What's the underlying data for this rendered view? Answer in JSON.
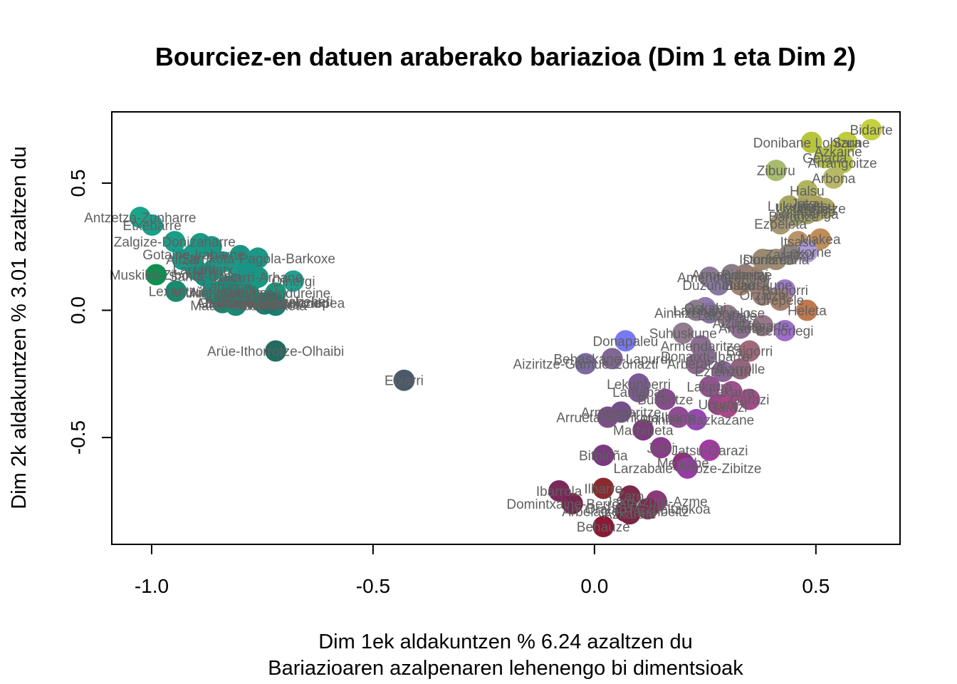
{
  "chart_data": {
    "type": "scatter",
    "title": "Bourciez-en datuen araberako bariazioa (Dim 1 eta Dim 2)",
    "xlabel": "Dim 1ek aldakuntzen % 6.24 azaltzen du",
    "xlabel2": "Bariazioaren azalpenaren lehenengo bi dimentsioak",
    "ylabel": "Dim 2k aldakuntzen % 3.01 azaltzen du",
    "xlim": [
      -1.09,
      0.69
    ],
    "ylim": [
      -0.92,
      0.78
    ],
    "xticks": [
      -1.0,
      -0.5,
      0.0,
      0.5
    ],
    "xtick_labels": [
      "-1.0",
      "-0.5",
      "0.0",
      "0.5"
    ],
    "yticks": [
      -0.5,
      0.0,
      0.5
    ],
    "ytick_labels": [
      "-0.5",
      "0.0",
      "0.5"
    ],
    "grid": false,
    "points": [
      {
        "x": -1.026,
        "y": 0.365,
        "label": "Antzetza-Zunharre",
        "color": "#1aa58a"
      },
      {
        "x": -0.999,
        "y": 0.335,
        "label": "Etxebarre",
        "color": "#18a08a"
      },
      {
        "x": -0.948,
        "y": 0.27,
        "label": "Zalgize-Donizaharre",
        "color": "#1a9e8a"
      },
      {
        "x": -0.89,
        "y": 0.262,
        "label": "",
        "color": "#1a9a88"
      },
      {
        "x": -0.865,
        "y": 0.25,
        "label": "",
        "color": "#1c9686"
      },
      {
        "x": -0.905,
        "y": 0.22,
        "label": "Gotaine-Irabarne",
        "color": "#1a9a88"
      },
      {
        "x": -0.93,
        "y": 0.2,
        "label": "Altzai",
        "color": "#1c9a88"
      },
      {
        "x": -0.8,
        "y": 0.215,
        "label": "",
        "color": "#1c9484"
      },
      {
        "x": -0.76,
        "y": 0.205,
        "label": "Sarrikota-Pagola-Barkoxe",
        "color": "#1c9686"
      },
      {
        "x": -0.86,
        "y": 0.16,
        "label": "Urdatx",
        "color": "#1a9280"
      },
      {
        "x": -0.9,
        "y": 0.16,
        "label": "Larrañe",
        "color": "#1a9482"
      },
      {
        "x": -0.76,
        "y": 0.13,
        "label": "Lakarri-Arhane",
        "color": "#1a9884"
      },
      {
        "x": -0.99,
        "y": 0.14,
        "label": "Muskildi-Ziboitz",
        "color": "#109050"
      },
      {
        "x": -0.88,
        "y": 0.135,
        "label": "Santa-Grazi",
        "color": "#1a8e80"
      },
      {
        "x": -0.8,
        "y": 0.12,
        "label": "",
        "color": "#1c9082"
      },
      {
        "x": -0.68,
        "y": 0.115,
        "label": "Oihergi",
        "color": "#20a090"
      },
      {
        "x": -0.83,
        "y": 0.095,
        "label": "Larraine",
        "color": "#1a8c7c"
      },
      {
        "x": -0.72,
        "y": 0.068,
        "label": "Sohüta-Ündüreine",
        "color": "#1b967c"
      },
      {
        "x": -0.945,
        "y": 0.075,
        "label": "Lexantzü",
        "color": "#198a70"
      },
      {
        "x": -0.86,
        "y": 0.07,
        "label": "Mitikile-Larrori",
        "color": "#1a8e7c"
      },
      {
        "x": -0.82,
        "y": 0.07,
        "label": "Ainharbe-Alos",
        "color": "#1a8a78"
      },
      {
        "x": -0.78,
        "y": 0.06,
        "label": "Garindaine",
        "color": "#1b887a"
      },
      {
        "x": -0.74,
        "y": 0.03,
        "label": "Barkoxe-Gastelondo",
        "color": "#1c8c7c"
      },
      {
        "x": -0.84,
        "y": 0.03,
        "label": "Garruze",
        "color": "#1a8670"
      },
      {
        "x": -0.81,
        "y": 0.02,
        "label": "Maule-Lextarre",
        "color": "#1a8a76"
      },
      {
        "x": -0.745,
        "y": 0.025,
        "label": "Iruri-Bizkaia",
        "color": "#1a8074"
      },
      {
        "x": -0.735,
        "y": 0.035,
        "label": "Altzürükü-Altzabeheti",
        "color": "#1b8678"
      },
      {
        "x": -0.72,
        "y": 0.02,
        "label": "Mendikota",
        "color": "#1a8074"
      },
      {
        "x": -0.81,
        "y": 0.18,
        "label": "",
        "color": "#1c9888"
      },
      {
        "x": -0.78,
        "y": 0.17,
        "label": "",
        "color": "#1a9484"
      },
      {
        "x": -0.84,
        "y": 0.19,
        "label": "",
        "color": "#1c9686"
      },
      {
        "x": -0.732,
        "y": 0.03,
        "label": "Arrokiaga-Hozkortziepea",
        "color": "#19786c"
      },
      {
        "x": -0.72,
        "y": -0.16,
        "label": "Arüe-Ithorrotze-Olhaibi",
        "color": "#226c60"
      },
      {
        "x": -0.43,
        "y": -0.275,
        "label": "Etxarri",
        "color": "#4a5a6a"
      },
      {
        "x": 0.625,
        "y": 0.71,
        "label": "Bidarte",
        "color": "#c4d03c"
      },
      {
        "x": 0.49,
        "y": 0.66,
        "label": "Donibane Lohizune",
        "color": "#b8c43a"
      },
      {
        "x": 0.57,
        "y": 0.66,
        "label": "Sara",
        "color": "#c0cc40"
      },
      {
        "x": 0.55,
        "y": 0.625,
        "label": "Azkaine",
        "color": "#bcc642"
      },
      {
        "x": 0.52,
        "y": 0.6,
        "label": "Getaria",
        "color": "#b4c048"
      },
      {
        "x": 0.56,
        "y": 0.58,
        "label": "Arrangoitze",
        "color": "#b6c24c"
      },
      {
        "x": 0.41,
        "y": 0.55,
        "label": "Ziburu",
        "color": "#a8bc70"
      },
      {
        "x": 0.54,
        "y": 0.52,
        "label": "Arbona",
        "color": "#b8b868"
      },
      {
        "x": 0.48,
        "y": 0.47,
        "label": "Halsu",
        "color": "#b0b460"
      },
      {
        "x": 0.48,
        "y": 0.42,
        "label": "Jatsu",
        "color": "#a8a868"
      },
      {
        "x": 0.47,
        "y": 0.4,
        "label": "Uztaritze",
        "color": "#a4a060"
      },
      {
        "x": 0.52,
        "y": 0.4,
        "label": "Ahetze",
        "color": "#aaa864"
      },
      {
        "x": 0.44,
        "y": 0.41,
        "label": "Lukuze",
        "color": "#a6a660"
      },
      {
        "x": 0.5,
        "y": 0.39,
        "label": "Kanbo",
        "color": "#a8a462"
      },
      {
        "x": 0.45,
        "y": 0.37,
        "label": "Bardoze",
        "color": "#a0a06a"
      },
      {
        "x": 0.48,
        "y": 0.38,
        "label": "Milafranga",
        "color": "#a2a268"
      },
      {
        "x": 0.42,
        "y": 0.34,
        "label": "Ezpeleta",
        "color": "#a69870"
      },
      {
        "x": 0.5,
        "y": 0.41,
        "label": "Haltsu",
        "color": "#aca660"
      },
      {
        "x": 0.46,
        "y": 0.27,
        "label": "Itsasu",
        "color": "#b8946a"
      },
      {
        "x": 0.51,
        "y": 0.28,
        "label": "Makea",
        "color": "#c08c58"
      },
      {
        "x": 0.48,
        "y": 0.23,
        "label": "Lekorne",
        "color": "#ac9ad8"
      },
      {
        "x": 0.41,
        "y": 0.2,
        "label": "Donamaria",
        "color": "#a08c70"
      },
      {
        "x": 0.38,
        "y": 0.2,
        "label": "Isturitze",
        "color": "#9a8a72"
      },
      {
        "x": 0.44,
        "y": 0.22,
        "label": "Zaraitzu",
        "color": "#8e8480"
      },
      {
        "x": 0.26,
        "y": 0.13,
        "label": "Amendoze",
        "color": "#8a7a94"
      },
      {
        "x": 0.31,
        "y": 0.14,
        "label": "Armendaritze",
        "color": "#8c7c86"
      },
      {
        "x": 0.34,
        "y": 0.14,
        "label": "Bidarrai",
        "color": "#947c7a"
      },
      {
        "x": 0.36,
        "y": 0.13,
        "label": "Iholdi",
        "color": "#9a8070"
      },
      {
        "x": 0.28,
        "y": 0.1,
        "label": "Duzunaritze",
        "color": "#8a78a0"
      },
      {
        "x": 0.33,
        "y": 0.1,
        "label": "Irisarri",
        "color": "#a4846e"
      },
      {
        "x": 0.37,
        "y": 0.1,
        "label": "Suhuskune",
        "color": "#96807a"
      },
      {
        "x": 0.43,
        "y": 0.08,
        "label": "Baigorri",
        "color": "#9c7ac6"
      },
      {
        "x": 0.38,
        "y": 0.06,
        "label": "Orzaize",
        "color": "#9a7e76"
      },
      {
        "x": 0.42,
        "y": 0.04,
        "label": "Urepele",
        "color": "#a6806a"
      },
      {
        "x": 0.48,
        "y": 0.0,
        "label": "Heleta",
        "color": "#c07850"
      },
      {
        "x": 0.25,
        "y": 0.01,
        "label": "Oskabi",
        "color": "#8e7ab0"
      },
      {
        "x": 0.23,
        "y": 0.0,
        "label": "Larribar",
        "color": "#8c7e8c"
      },
      {
        "x": 0.26,
        "y": -0.01,
        "label": "Ainhize-Monjolose",
        "color": "#86749a"
      },
      {
        "x": 0.3,
        "y": -0.02,
        "label": "Larzabale",
        "color": "#927a8c"
      },
      {
        "x": 0.32,
        "y": -0.05,
        "label": "Aiziritze",
        "color": "#8a7296"
      },
      {
        "x": 0.38,
        "y": -0.06,
        "label": "Gamarte",
        "color": "#967888"
      },
      {
        "x": 0.43,
        "y": -0.08,
        "label": "Behorlegi",
        "color": "#9c6ec8"
      },
      {
        "x": 0.33,
        "y": -0.07,
        "label": "Arraute",
        "color": "#8a7090"
      },
      {
        "x": 0.2,
        "y": -0.09,
        "label": "Suhuskune",
        "color": "#927c90"
      },
      {
        "x": 0.24,
        "y": -0.14,
        "label": "Armendaritze",
        "color": "#8c6e92"
      },
      {
        "x": 0.07,
        "y": -0.12,
        "label": "Donapaleu",
        "color": "#7878f0"
      },
      {
        "x": 0.04,
        "y": -0.19,
        "label": "Behaskane-Lapurdi",
        "color": "#806892"
      },
      {
        "x": -0.02,
        "y": -0.21,
        "label": "Aiziritze-Gamue-Zohazti",
        "color": "#7c6aa0"
      },
      {
        "x": 0.25,
        "y": -0.18,
        "label": "Donaixti-Ibarre",
        "color": "#886e92"
      },
      {
        "x": 0.35,
        "y": -0.16,
        "label": "Baigorri",
        "color": "#a06878"
      },
      {
        "x": 0.23,
        "y": -0.21,
        "label": "Arberatze",
        "color": "#8c6890"
      },
      {
        "x": 0.33,
        "y": -0.23,
        "label": "Ibarrolle",
        "color": "#94647e"
      },
      {
        "x": 0.29,
        "y": -0.24,
        "label": "Eztenzuri",
        "color": "#8a6696"
      },
      {
        "x": 0.1,
        "y": -0.29,
        "label": "Lekunberri",
        "color": "#7a5a94"
      },
      {
        "x": 0.1,
        "y": -0.32,
        "label": "Lantabat",
        "color": "#7c5a90"
      },
      {
        "x": 0.26,
        "y": -0.3,
        "label": "Lakarra",
        "color": "#90548c"
      },
      {
        "x": 0.31,
        "y": -0.32,
        "label": "Lakarra",
        "color": "#a0508c"
      },
      {
        "x": 0.35,
        "y": -0.35,
        "label": "Garazi",
        "color": "#a04c88"
      },
      {
        "x": 0.16,
        "y": -0.35,
        "label": "Bustintze",
        "color": "#884c8e"
      },
      {
        "x": 0.28,
        "y": -0.37,
        "label": "Uharte",
        "color": "#9a4888"
      },
      {
        "x": 0.3,
        "y": -0.38,
        "label": "Garazi",
        "color": "#a84888"
      },
      {
        "x": 0.06,
        "y": -0.4,
        "label": "Armendaritze",
        "color": "#74508a"
      },
      {
        "x": 0.03,
        "y": -0.42,
        "label": "Arrueta-Sarrikota",
        "color": "#7a5088"
      },
      {
        "x": 0.19,
        "y": -0.42,
        "label": "Ibarre",
        "color": "#904c94"
      },
      {
        "x": 0.23,
        "y": -0.43,
        "label": "Ainhize-Bazkazane",
        "color": "#9448b0"
      },
      {
        "x": 0.11,
        "y": -0.47,
        "label": "Martxueta",
        "color": "#7c3c7c"
      },
      {
        "x": 0.15,
        "y": -0.54,
        "label": "Jutsi",
        "color": "#8a3a8a"
      },
      {
        "x": 0.26,
        "y": -0.55,
        "label": "Jatsu-Garazi",
        "color": "#a03ca0"
      },
      {
        "x": 0.02,
        "y": -0.57,
        "label": "Bithiriña",
        "color": "#7a3a80"
      },
      {
        "x": 0.2,
        "y": -0.6,
        "label": "Mendibe",
        "color": "#8c3078"
      },
      {
        "x": 0.21,
        "y": -0.62,
        "label": "Larzabale-Arroze-Zibitze",
        "color": "#9a3aa8"
      },
      {
        "x": 0.02,
        "y": -0.7,
        "label": "Ilharre",
        "color": "#8a2a30"
      },
      {
        "x": -0.08,
        "y": -0.71,
        "label": "Ibarrola",
        "color": "#7a2a5a"
      },
      {
        "x": 0.08,
        "y": -0.73,
        "label": "Zaro",
        "color": "#7a2a4a"
      },
      {
        "x": 0.14,
        "y": -0.75,
        "label": "Jaxu-Izura-Azme",
        "color": "#8a3a78"
      },
      {
        "x": -0.05,
        "y": -0.76,
        "label": "Domintxaine-Berroeta",
        "color": "#76264e"
      },
      {
        "x": 0.07,
        "y": -0.79,
        "label": "Arbelatze-Haranbeltz",
        "color": "#722246"
      },
      {
        "x": 0.12,
        "y": -0.78,
        "label": "Orabaxi-Ezpeltzokoa",
        "color": "#802854"
      },
      {
        "x": 0.08,
        "y": -0.8,
        "label": "Azkarate",
        "color": "#7c2444"
      },
      {
        "x": 0.02,
        "y": -0.85,
        "label": "Behauze",
        "color": "#8a1a36"
      }
    ]
  }
}
